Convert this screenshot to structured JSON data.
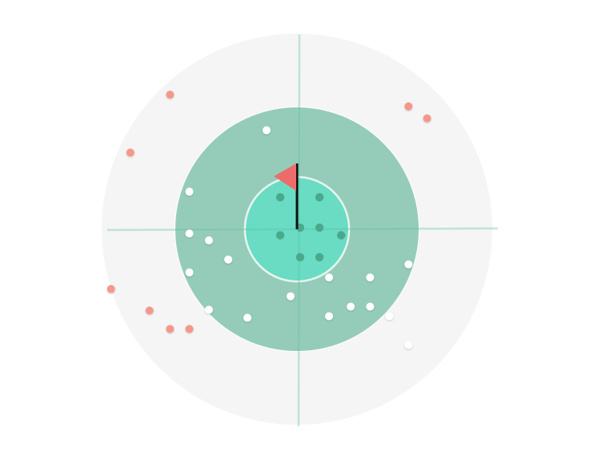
{
  "colors": {
    "background": "#ffffff",
    "outer_zone": "#f5f5f5",
    "middle_zone": "#95ccb9",
    "inner_zone": "#69dcc3",
    "inner_zone_border": "#e6f5ef",
    "crosshair": "#5dbfa2",
    "flag": "#ee6b6b",
    "pole": "#111111",
    "ball_on_green": "#4aa88c",
    "ball_white": "#ffffff",
    "ball_miss": "#f3998a"
  },
  "chart_data": {
    "type": "scatter",
    "description_free": true,
    "axes": {
      "x_range": [
        -100,
        100
      ],
      "y_range": [
        -100,
        100
      ],
      "grid": false,
      "crosshair": true
    },
    "zones": [
      {
        "id": "outer",
        "radius": 100
      },
      {
        "id": "middle",
        "radius": 62.5
      },
      {
        "id": "inner",
        "radius": 26.7
      }
    ],
    "flag": {
      "x": 0,
      "y": 0
    },
    "series": [
      {
        "id": "inner",
        "color_key": "ball_on_green",
        "points": [
          {
            "x": -8.6,
            "y": 16.3
          },
          {
            "x": 11.5,
            "y": 16.3
          },
          {
            "x": 1.6,
            "y": 0.8
          },
          {
            "x": 11.5,
            "y": 0.8
          },
          {
            "x": -8.6,
            "y": -3.1
          },
          {
            "x": 22.6,
            "y": -3.1
          },
          {
            "x": 1.6,
            "y": -14.3
          },
          {
            "x": 11.5,
            "y": -14.3
          }
        ]
      },
      {
        "id": "middle",
        "color_key": "ball_white",
        "points": [
          {
            "x": -15.6,
            "y": 50.6
          },
          {
            "x": -55.1,
            "y": 19.2
          },
          {
            "x": -55.1,
            "y": -2.2
          },
          {
            "x": -45.1,
            "y": -5.7
          },
          {
            "x": -35.2,
            "y": -15.5
          },
          {
            "x": -55.1,
            "y": -22.1
          },
          {
            "x": 16.4,
            "y": -24.7
          },
          {
            "x": 37.4,
            "y": -24.7
          },
          {
            "x": 57.1,
            "y": -18.0
          },
          {
            "x": -3.3,
            "y": -34.3
          },
          {
            "x": -45.1,
            "y": -41.2
          },
          {
            "x": -25.4,
            "y": -45.3
          },
          {
            "x": 27.5,
            "y": -39.6
          },
          {
            "x": 37.4,
            "y": -39.6
          },
          {
            "x": 16.4,
            "y": -44.5
          },
          {
            "x": 47.3,
            "y": -44.5
          },
          {
            "x": 57.1,
            "y": -59.2
          }
        ]
      },
      {
        "id": "outer",
        "color_key": "ball_miss",
        "points": [
          {
            "x": -65.0,
            "y": 68.8
          },
          {
            "x": 57.1,
            "y": 62.8
          },
          {
            "x": 66.6,
            "y": 56.7
          },
          {
            "x": -85.3,
            "y": 39.2
          },
          {
            "x": -95.2,
            "y": -30.6
          },
          {
            "x": -75.5,
            "y": -41.6
          },
          {
            "x": -65.0,
            "y": -51.0
          },
          {
            "x": -55.1,
            "y": -51.0
          }
        ]
      }
    ]
  }
}
